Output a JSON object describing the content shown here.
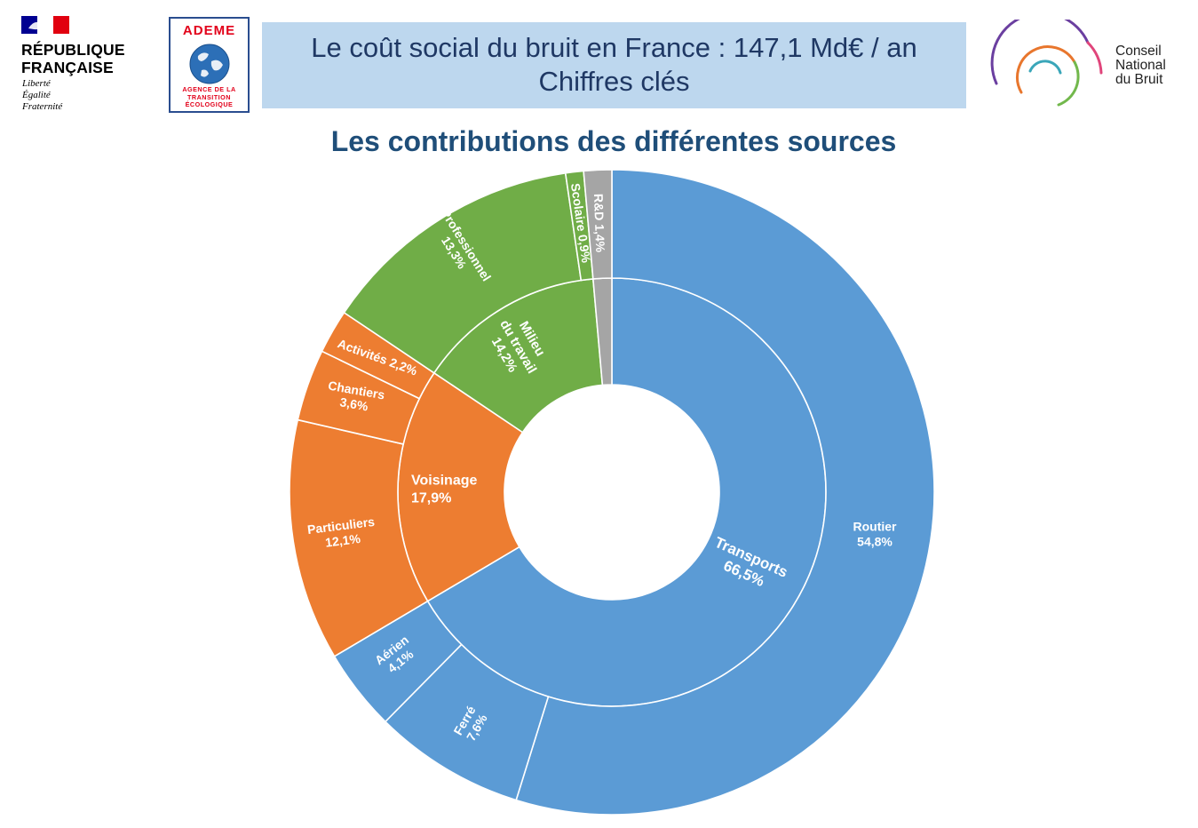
{
  "header": {
    "republique_title_line1": "RÉPUBLIQUE",
    "republique_title_line2": "FRANÇAISE",
    "republique_motto": [
      "Liberté",
      "Égalité",
      "Fraternité"
    ],
    "ademe_name": "ADEME",
    "ademe_tagline": [
      "AGENCE DE LA",
      "TRANSITION",
      "ÉCOLOGIQUE"
    ],
    "title_line1": "Le coût social du bruit en France : 147,1 Md€ / an",
    "title_line2": "Chiffres clés",
    "cnb_name": [
      "Conseil",
      "National",
      "du Bruit"
    ]
  },
  "colors": {
    "transports": "#5b9bd5",
    "voisinage": "#ed7d31",
    "milieu": "#70ad47",
    "rd": "#a5a5a5",
    "title_box": "#bdd7ee",
    "title_text": "#1f3864",
    "chart_title": "#1f4e79"
  },
  "chart_data": {
    "type": "sunburst",
    "title": "Les contributions des différentes sources",
    "unit": "%",
    "inner": [
      {
        "name": "Transports",
        "label": "66,5%",
        "value": 66.5,
        "color": "#5b9bd5"
      },
      {
        "name": "Voisinage",
        "label": "17,9%",
        "value": 17.9,
        "color": "#ed7d31"
      },
      {
        "name": "Milieu du travail",
        "label": "14,2%",
        "value": 14.2,
        "color": "#70ad47"
      },
      {
        "name": "R&D",
        "label": "",
        "value": 1.4,
        "color": "#a5a5a5"
      }
    ],
    "outer": [
      {
        "name": "Routier",
        "label": "54,8%",
        "value": 54.8,
        "color": "#5b9bd5"
      },
      {
        "name": "Ferré",
        "label": "7,6%",
        "value": 7.6,
        "color": "#5b9bd5"
      },
      {
        "name": "Aérien",
        "label": "4,1%",
        "value": 4.1,
        "color": "#5b9bd5"
      },
      {
        "name": "Particuliers",
        "label": "12,1%",
        "value": 12.1,
        "color": "#ed7d31"
      },
      {
        "name": "Chantiers",
        "label": "3,6%",
        "value": 3.6,
        "color": "#ed7d31"
      },
      {
        "name": "Activités",
        "label": "2,2%",
        "value": 2.2,
        "color": "#ed7d31"
      },
      {
        "name": "Professionnel",
        "label": "13,3%",
        "value": 13.3,
        "color": "#70ad47"
      },
      {
        "name": "Scolaire",
        "label": "0,9%",
        "value": 0.9,
        "color": "#70ad47"
      },
      {
        "name": "R&D",
        "label": "1,4%",
        "value": 1.4,
        "color": "#a5a5a5"
      }
    ]
  }
}
